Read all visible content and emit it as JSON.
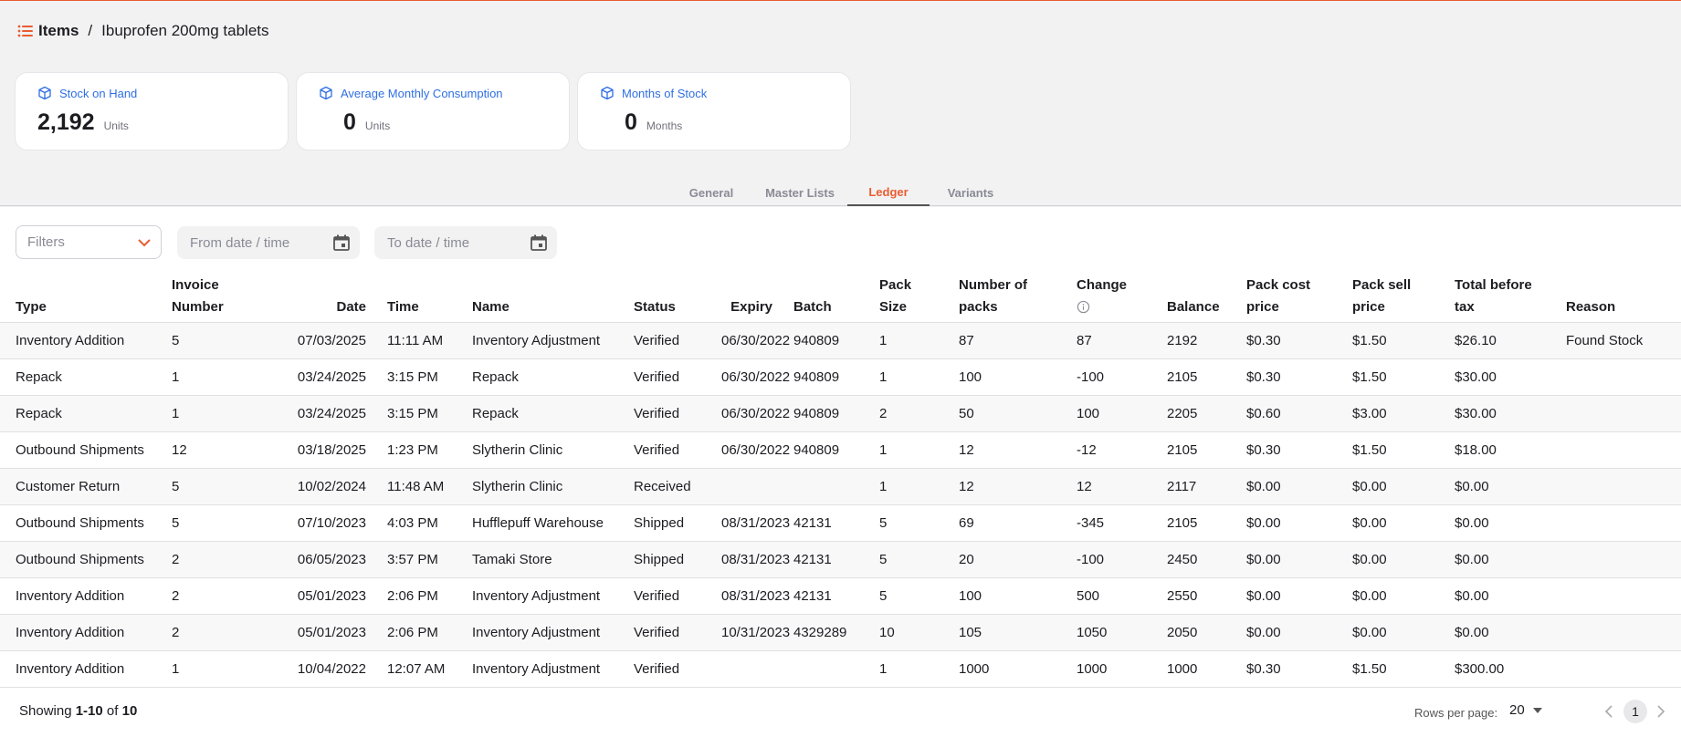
{
  "breadcrumb": {
    "root": "Items",
    "separator": "/",
    "current": "Ibuprofen 200mg tablets"
  },
  "cards": [
    {
      "title": "Stock on Hand",
      "value": "2,192",
      "unit": "Units"
    },
    {
      "title": "Average Monthly Consumption",
      "value": "0",
      "unit": "Units"
    },
    {
      "title": "Months of Stock",
      "value": "0",
      "unit": "Months"
    }
  ],
  "tabs": [
    {
      "label": "General",
      "active": false
    },
    {
      "label": "Master Lists",
      "active": false
    },
    {
      "label": "Ledger",
      "active": true
    },
    {
      "label": "Variants",
      "active": false
    }
  ],
  "filters": {
    "select_placeholder": "Filters",
    "from_placeholder": "From date / time",
    "to_placeholder": "To date / time"
  },
  "table": {
    "headers": {
      "type": "Type",
      "invoice_1": "Invoice",
      "invoice_2": "Number",
      "date": "Date",
      "time": "Time",
      "name": "Name",
      "status": "Status",
      "expiry": "Expiry",
      "batch": "Batch",
      "pack_1": "Pack",
      "pack_2": "Size",
      "packs_1": "Number of",
      "packs_2": "packs",
      "change": "Change",
      "balance": "Balance",
      "cost_1": "Pack cost",
      "cost_2": "price",
      "sell_1": "Pack sell",
      "sell_2": "price",
      "total_1": "Total before",
      "total_2": "tax",
      "reason": "Reason"
    },
    "rows": [
      {
        "type": "Inventory Addition",
        "invoice": "5",
        "date": "07/03/2025",
        "time": "11:11 AM",
        "name": "Inventory Adjustment",
        "status": "Verified",
        "expiry": "06/30/2022",
        "batch": "940809",
        "pack_size": "1",
        "packs": "87",
        "change": "87",
        "balance": "2192",
        "cost": "$0.30",
        "sell": "$1.50",
        "total": "$26.10",
        "reason": "Found Stock"
      },
      {
        "type": "Repack",
        "invoice": "1",
        "date": "03/24/2025",
        "time": "3:15 PM",
        "name": "Repack",
        "status": "Verified",
        "expiry": "06/30/2022",
        "batch": "940809",
        "pack_size": "1",
        "packs": "100",
        "change": "-100",
        "balance": "2105",
        "cost": "$0.30",
        "sell": "$1.50",
        "total": "$30.00",
        "reason": ""
      },
      {
        "type": "Repack",
        "invoice": "1",
        "date": "03/24/2025",
        "time": "3:15 PM",
        "name": "Repack",
        "status": "Verified",
        "expiry": "06/30/2022",
        "batch": "940809",
        "pack_size": "2",
        "packs": "50",
        "change": "100",
        "balance": "2205",
        "cost": "$0.60",
        "sell": "$3.00",
        "total": "$30.00",
        "reason": ""
      },
      {
        "type": "Outbound Shipments",
        "invoice": "12",
        "date": "03/18/2025",
        "time": "1:23 PM",
        "name": "Slytherin Clinic",
        "status": "Verified",
        "expiry": "06/30/2022",
        "batch": "940809",
        "pack_size": "1",
        "packs": "12",
        "change": "-12",
        "balance": "2105",
        "cost": "$0.30",
        "sell": "$1.50",
        "total": "$18.00",
        "reason": ""
      },
      {
        "type": "Customer Return",
        "invoice": "5",
        "date": "10/02/2024",
        "time": "11:48 AM",
        "name": "Slytherin Clinic",
        "status": "Received",
        "expiry": "",
        "batch": "",
        "pack_size": "1",
        "packs": "12",
        "change": "12",
        "balance": "2117",
        "cost": "$0.00",
        "sell": "$0.00",
        "total": "$0.00",
        "reason": ""
      },
      {
        "type": "Outbound Shipments",
        "invoice": "5",
        "date": "07/10/2023",
        "time": "4:03 PM",
        "name": "Hufflepuff Warehouse",
        "status": "Shipped",
        "expiry": "08/31/2023",
        "batch": "42131",
        "pack_size": "5",
        "packs": "69",
        "change": "-345",
        "balance": "2105",
        "cost": "$0.00",
        "sell": "$0.00",
        "total": "$0.00",
        "reason": ""
      },
      {
        "type": "Outbound Shipments",
        "invoice": "2",
        "date": "06/05/2023",
        "time": "3:57 PM",
        "name": "Tamaki Store",
        "status": "Shipped",
        "expiry": "08/31/2023",
        "batch": "42131",
        "pack_size": "5",
        "packs": "20",
        "change": "-100",
        "balance": "2450",
        "cost": "$0.00",
        "sell": "$0.00",
        "total": "$0.00",
        "reason": ""
      },
      {
        "type": "Inventory Addition",
        "invoice": "2",
        "date": "05/01/2023",
        "time": "2:06 PM",
        "name": "Inventory Adjustment",
        "status": "Verified",
        "expiry": "08/31/2023",
        "batch": "42131",
        "pack_size": "5",
        "packs": "100",
        "change": "500",
        "balance": "2550",
        "cost": "$0.00",
        "sell": "$0.00",
        "total": "$0.00",
        "reason": ""
      },
      {
        "type": "Inventory Addition",
        "invoice": "2",
        "date": "05/01/2023",
        "time": "2:06 PM",
        "name": "Inventory Adjustment",
        "status": "Verified",
        "expiry": "10/31/2023",
        "batch": "4329289",
        "pack_size": "10",
        "packs": "105",
        "change": "1050",
        "balance": "2050",
        "cost": "$0.00",
        "sell": "$0.00",
        "total": "$0.00",
        "reason": ""
      },
      {
        "type": "Inventory Addition",
        "invoice": "1",
        "date": "10/04/2022",
        "time": "12:07 AM",
        "name": "Inventory Adjustment",
        "status": "Verified",
        "expiry": "",
        "batch": "",
        "pack_size": "1",
        "packs": "1000",
        "change": "1000",
        "balance": "1000",
        "cost": "$0.30",
        "sell": "$1.50",
        "total": "$300.00",
        "reason": ""
      }
    ]
  },
  "footer": {
    "showing_prefix": "Showing",
    "showing_range": "1-10",
    "showing_of": "of",
    "showing_total": "10",
    "rows_per_page_label": "Rows per page:",
    "rows_per_page_value": "20",
    "current_page": "1"
  },
  "colors": {
    "accent": "#e95c30",
    "card_title": "#2f6fe3"
  },
  "icons": {
    "menu": "list-icon",
    "card": "package-icon",
    "calendar": "calendar-icon",
    "filter_chevron": "chevron-down-icon",
    "change_info": "info-icon"
  }
}
